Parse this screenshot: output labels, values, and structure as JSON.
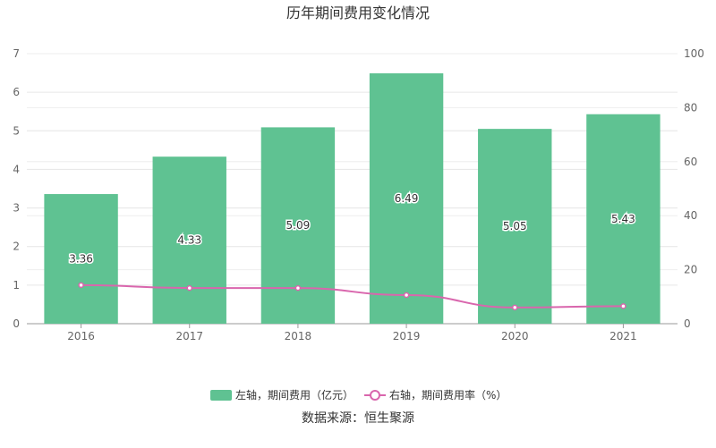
{
  "chart_data": {
    "type": "bar",
    "title": "历年期间费用变化情况",
    "categories": [
      "2016",
      "2017",
      "2018",
      "2019",
      "2020",
      "2021"
    ],
    "series": [
      {
        "name": "左轴，期间费用（亿元）",
        "type": "bar",
        "axis": "left",
        "values": [
          3.36,
          4.33,
          5.09,
          6.49,
          5.05,
          5.43
        ],
        "color": "#5fc292",
        "data_labels": [
          "3.36",
          "4.33",
          "5.09",
          "6.49",
          "5.05",
          "5.43"
        ]
      },
      {
        "name": "右轴，期间费用率（%）",
        "type": "line",
        "axis": "right",
        "values": [
          14.3,
          13.2,
          13.2,
          10.6,
          6.0,
          6.5
        ],
        "color": "#d966ad"
      }
    ],
    "y_left": {
      "ylim": [
        0,
        7
      ],
      "ticks": [
        "0",
        "1",
        "2",
        "3",
        "4",
        "5",
        "6",
        "7"
      ]
    },
    "y_right": {
      "ylim": [
        0,
        100
      ],
      "ticks": [
        "0",
        "20",
        "40",
        "60",
        "80",
        "100"
      ]
    },
    "grid": true,
    "legend": "bottom-center"
  },
  "footer": {
    "source": "数据来源：恒生聚源"
  }
}
